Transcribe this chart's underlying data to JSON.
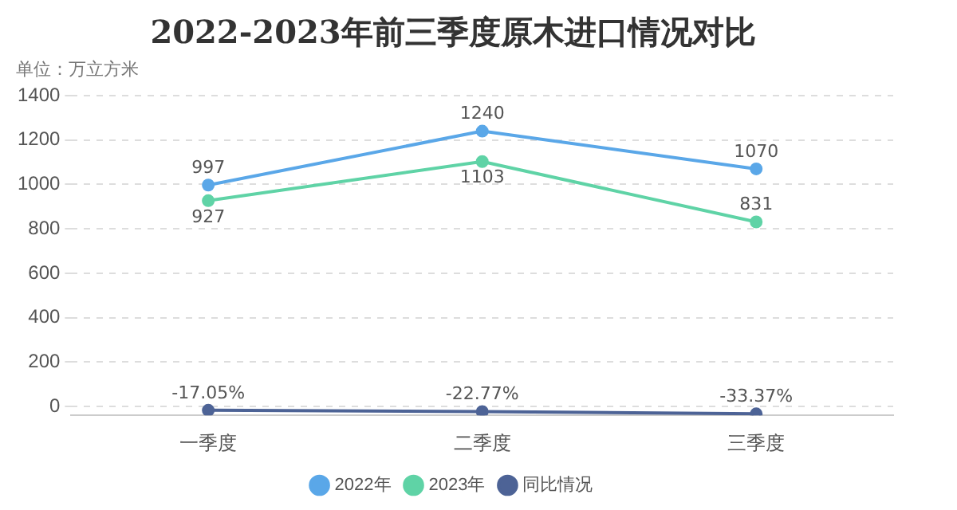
{
  "chart_data": {
    "type": "line",
    "title": "2022-2023年前三季度原木进口情况对比",
    "ylabel": "单位：万立方米",
    "categories": [
      "一季度",
      "二季度",
      "三季度"
    ],
    "series": [
      {
        "name": "2022年",
        "color": "#5aa7e8",
        "values": [
          997,
          1240,
          1070
        ],
        "value_labels": [
          "997",
          "1240",
          "1070"
        ]
      },
      {
        "name": "2023年",
        "color": "#5fd3a6",
        "values": [
          927,
          1103,
          831
        ],
        "value_labels": [
          "927",
          "1103",
          "831"
        ]
      },
      {
        "name": "同比情况",
        "color": "#4d6396",
        "values": [
          -17.05,
          -22.77,
          -33.37
        ],
        "value_labels": [
          "-17.05%",
          "-22.77%",
          "-33.37%"
        ]
      }
    ],
    "ylim": [
      -40,
      1400
    ],
    "yticks": [
      0,
      200,
      400,
      600,
      800,
      1000,
      1200,
      1400
    ],
    "grid": "y",
    "legend": "bottom",
    "marker": "circle",
    "line_style": "solid"
  }
}
